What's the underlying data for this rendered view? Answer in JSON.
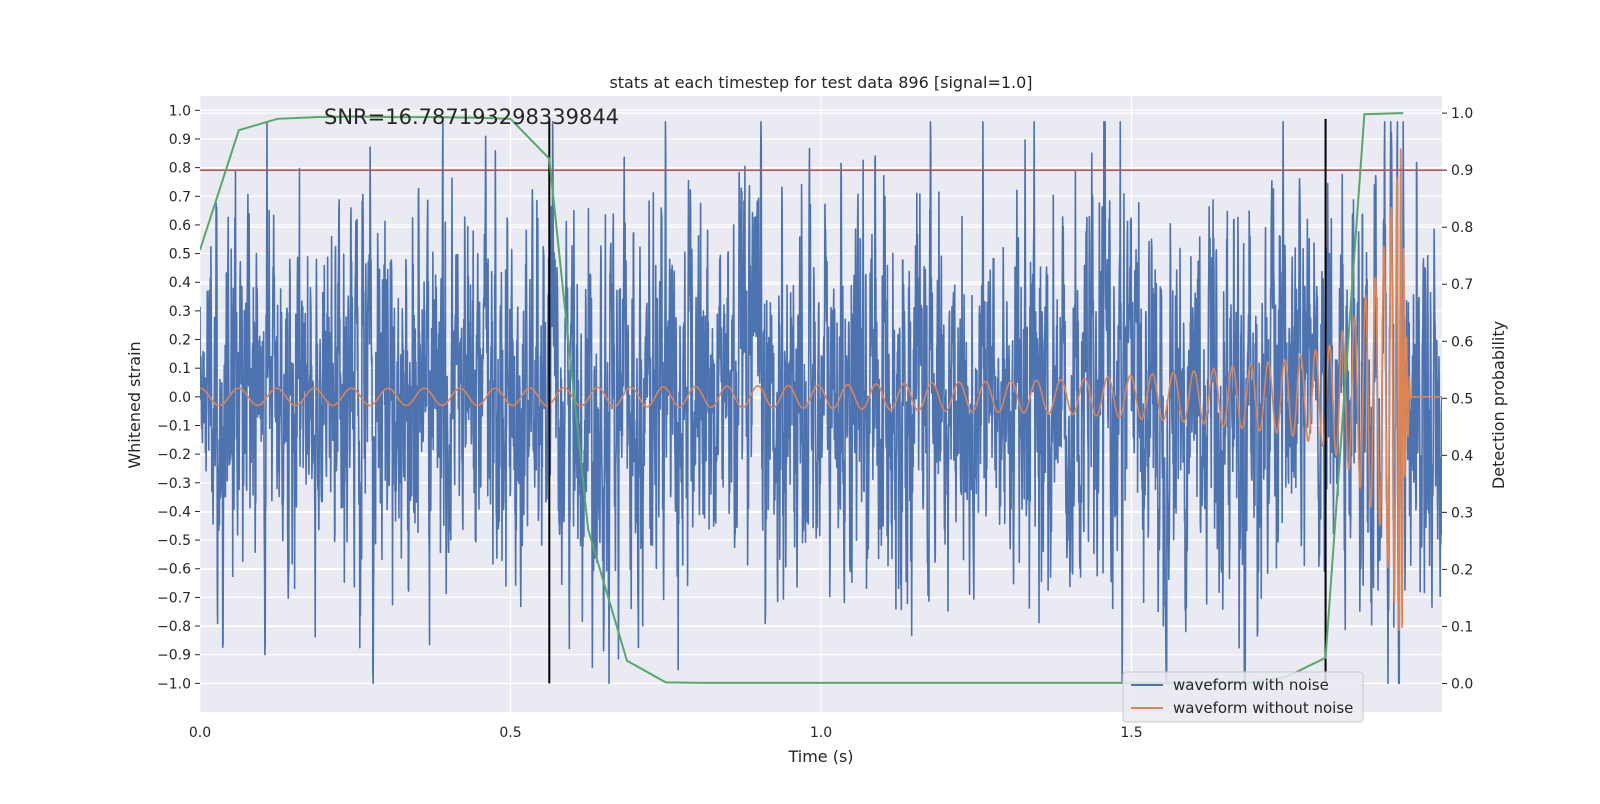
{
  "chart_data": {
    "type": "line",
    "title": "stats at each timestep for test data 896 [signal=1.0]",
    "annotation": "SNR=16.787193298339844",
    "xlabel": "Time (s)",
    "ylabel": "Whitened strain",
    "y2label": "Detection probability",
    "xlim": [
      0.0,
      2.0
    ],
    "ylim": [
      -1.1,
      1.05
    ],
    "y2lim": [
      -0.05,
      1.03
    ],
    "xticks": [
      "0.0",
      "0.5",
      "1.0",
      "1.5"
    ],
    "xtick_values": [
      0.0,
      0.5,
      1.0,
      1.5
    ],
    "yticks": [
      "1.0",
      "0.9",
      "0.8",
      "0.7",
      "0.6",
      "0.5",
      "0.4",
      "0.3",
      "0.2",
      "0.1",
      "0.0",
      "−0.1",
      "−0.2",
      "−0.3",
      "−0.4",
      "−0.5",
      "−0.6",
      "−0.7",
      "−0.8",
      "−0.9",
      "−1.0"
    ],
    "ytick_values": [
      1.0,
      0.9,
      0.8,
      0.7,
      0.6,
      0.5,
      0.4,
      0.3,
      0.2,
      0.1,
      0.0,
      -0.1,
      -0.2,
      -0.3,
      -0.4,
      -0.5,
      -0.6,
      -0.7,
      -0.8,
      -0.9,
      -1.0
    ],
    "y2ticks": [
      "1.0",
      "0.9",
      "0.8",
      "0.7",
      "0.6",
      "0.5",
      "0.4",
      "0.3",
      "0.2",
      "0.1",
      "0.0"
    ],
    "y2tick_values": [
      1.0,
      0.9,
      0.8,
      0.7,
      0.6,
      0.5,
      0.4,
      0.3,
      0.2,
      0.1,
      0.0
    ],
    "threshold": {
      "y2": 0.9,
      "color": "#c44e52"
    },
    "vlines": {
      "x": [
        0.5625,
        1.8125
      ],
      "ymin": -1.0,
      "ymax": 0.97,
      "color": "#000000"
    },
    "legend": {
      "placement": "lower-right",
      "entries": [
        "waveform with noise",
        "waveform without noise"
      ]
    },
    "series": [
      {
        "name": "waveform with noise",
        "color": "#4c72b0",
        "axis": "left",
        "noise": {
          "t_start": 0.0,
          "t_end": 2.0,
          "approx_samples": 4096,
          "typical_amplitude": 0.27,
          "range": [
            -1.0,
            0.96
          ]
        }
      },
      {
        "name": "waveform without noise",
        "color": "#dd8452",
        "axis": "left",
        "chirp": {
          "t_start": 0.0,
          "t_end": 2.0,
          "f_start": 16,
          "f_merger": 260,
          "t_merger": 1.935,
          "amplitude_points": [
            [
              0.0,
              0.03
            ],
            [
              0.5,
              0.03
            ],
            [
              1.0,
              0.04
            ],
            [
              1.4,
              0.06
            ],
            [
              1.6,
              0.09
            ],
            [
              1.75,
              0.13
            ],
            [
              1.82,
              0.18
            ],
            [
              1.86,
              0.28
            ],
            [
              1.9,
              0.45
            ],
            [
              1.93,
              0.8
            ],
            [
              1.935,
              0.92
            ],
            [
              1.94,
              0.3
            ],
            [
              1.95,
              0.0
            ],
            [
              2.0,
              0.0
            ]
          ]
        }
      },
      {
        "name": "",
        "color": "#55a868",
        "axis": "right",
        "x": [
          0.0,
          0.0625,
          0.125,
          0.1875,
          0.25,
          0.3125,
          0.375,
          0.4375,
          0.5,
          0.5625,
          0.625,
          0.6875,
          0.75,
          0.8125,
          0.875,
          0.9375,
          1.0,
          1.0625,
          1.125,
          1.1875,
          1.25,
          1.3125,
          1.375,
          1.4375,
          1.5,
          1.5625,
          1.625,
          1.6875,
          1.75,
          1.8125,
          1.875,
          1.9375
        ],
        "values": [
          0.76,
          0.97,
          0.99,
          0.993,
          0.994,
          0.993,
          0.993,
          0.992,
          0.99,
          0.92,
          0.27,
          0.04,
          0.002,
          0.001,
          0.001,
          0.001,
          0.001,
          0.001,
          0.001,
          0.001,
          0.001,
          0.001,
          0.001,
          0.001,
          0.001,
          0.001,
          0.001,
          0.001,
          0.012,
          0.045,
          0.998,
          1.0
        ]
      }
    ]
  }
}
